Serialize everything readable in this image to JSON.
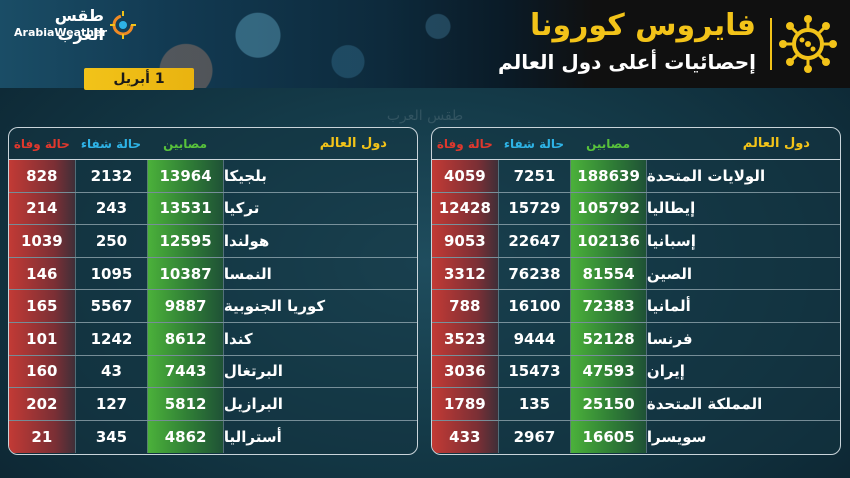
{
  "header": {
    "title": "فايروس كورونا",
    "subtitle": "إحصائيات أعلى دول العالم",
    "date": "1 أبريل",
    "logo_ar": "طقس العرب",
    "logo_en": "ArabiaWeather",
    "watermark": "طقس العرب"
  },
  "colors": {
    "accent": "#f2c319",
    "deaths": "#e0382d",
    "recovered": "#2eb3e6",
    "cases": "#58c23b"
  },
  "columns": {
    "country": "دول العالم",
    "cases": "مصابين",
    "recovered": "حالة شفاء",
    "deaths": "حالة وفاة"
  },
  "table_right": [
    {
      "country": "الولايات المتحدة",
      "cases": "188639",
      "recovered": "7251",
      "deaths": "4059"
    },
    {
      "country": "إيطاليا",
      "cases": "105792",
      "recovered": "15729",
      "deaths": "12428"
    },
    {
      "country": "إسبانيا",
      "cases": "102136",
      "recovered": "22647",
      "deaths": "9053"
    },
    {
      "country": "الصين",
      "cases": "81554",
      "recovered": "76238",
      "deaths": "3312"
    },
    {
      "country": "ألمانيا",
      "cases": "72383",
      "recovered": "16100",
      "deaths": "788"
    },
    {
      "country": "فرنسا",
      "cases": "52128",
      "recovered": "9444",
      "deaths": "3523"
    },
    {
      "country": "إيران",
      "cases": "47593",
      "recovered": "15473",
      "deaths": "3036"
    },
    {
      "country": "المملكة المتحدة",
      "cases": "25150",
      "recovered": "135",
      "deaths": "1789"
    },
    {
      "country": "سويسرا",
      "cases": "16605",
      "recovered": "2967",
      "deaths": "433"
    }
  ],
  "table_left": [
    {
      "country": "بلجيكا",
      "cases": "13964",
      "recovered": "2132",
      "deaths": "828"
    },
    {
      "country": "تركيا",
      "cases": "13531",
      "recovered": "243",
      "deaths": "214"
    },
    {
      "country": "هولندا",
      "cases": "12595",
      "recovered": "250",
      "deaths": "1039"
    },
    {
      "country": "النمسا",
      "cases": "10387",
      "recovered": "1095",
      "deaths": "146"
    },
    {
      "country": "كوريا الجنوبية",
      "cases": "9887",
      "recovered": "5567",
      "deaths": "165"
    },
    {
      "country": "كندا",
      "cases": "8612",
      "recovered": "1242",
      "deaths": "101"
    },
    {
      "country": "البرتغال",
      "cases": "7443",
      "recovered": "43",
      "deaths": "160"
    },
    {
      "country": "البرازيل",
      "cases": "5812",
      "recovered": "127",
      "deaths": "202"
    },
    {
      "country": "أستراليا",
      "cases": "4862",
      "recovered": "345",
      "deaths": "21"
    }
  ]
}
